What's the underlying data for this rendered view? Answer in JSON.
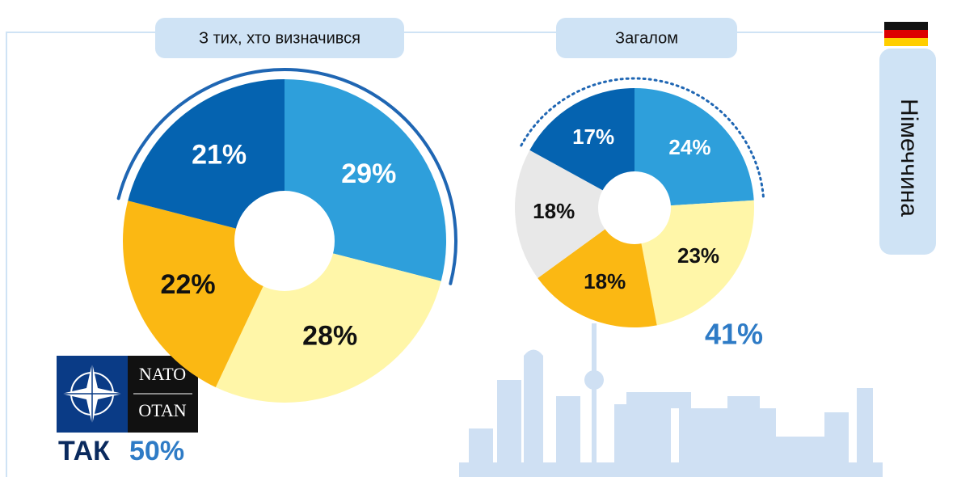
{
  "chart_data": [
    {
      "type": "pie",
      "title": "З тих, хто визначився",
      "values": [
        29,
        28,
        22,
        21
      ],
      "value_labels": [
        "29%",
        "28%",
        "22%",
        "21%"
      ],
      "colors": [
        "#2e9fdb",
        "#fff6a8",
        "#fbb813",
        "#0563b0"
      ],
      "label_colors": [
        "#ffffff",
        "#111111",
        "#111111",
        "#ffffff"
      ],
      "annotation_prefix": "ТАК",
      "annotation_value": 50,
      "annotation_value_label": "50%"
    },
    {
      "type": "pie",
      "title": "Загалом",
      "values": [
        24,
        23,
        18,
        18,
        17
      ],
      "value_labels": [
        "24%",
        "23%",
        "18%",
        "18%",
        "17%"
      ],
      "colors": [
        "#2e9fdb",
        "#fff6a8",
        "#fbb813",
        "#e8e8e8",
        "#0563b0"
      ],
      "label_colors": [
        "#ffffff",
        "#111111",
        "#111111",
        "#111111",
        "#ffffff"
      ],
      "annotation_value": 41,
      "annotation_value_label": "41%"
    }
  ],
  "country": "Німеччина",
  "logo": [
    "NATO",
    "OTAN"
  ]
}
